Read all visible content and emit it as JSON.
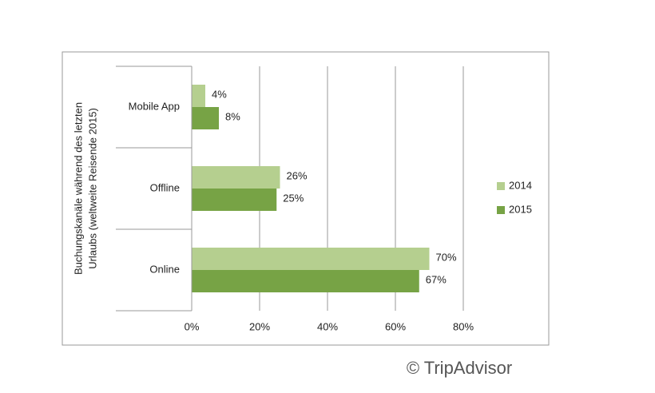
{
  "chart_data": {
    "type": "barh",
    "y_label": [
      "Buchungskanäle während des letzten",
      "Urlaubs (weltweite Reisende 2015)"
    ],
    "categories": [
      "Mobile App",
      "Offline",
      "Online"
    ],
    "series": [
      {
        "name": "2014",
        "color": "#b5cf8f",
        "values": [
          4,
          26,
          70
        ],
        "value_labels": [
          "4%",
          "26%",
          "70%"
        ]
      },
      {
        "name": "2015",
        "color": "#77a345",
        "values": [
          8,
          25,
          67
        ],
        "value_labels": [
          "8%",
          "25%",
          "67%"
        ]
      }
    ],
    "xlim": [
      0,
      80
    ],
    "xticks": [
      {
        "value": 0,
        "label": "0%"
      },
      {
        "value": 20,
        "label": "20%"
      },
      {
        "value": 40,
        "label": "40%"
      },
      {
        "value": 60,
        "label": "60%"
      },
      {
        "value": 80,
        "label": "80%"
      }
    ],
    "grid": true,
    "legend": "right",
    "source": "© TripAdvisor"
  }
}
